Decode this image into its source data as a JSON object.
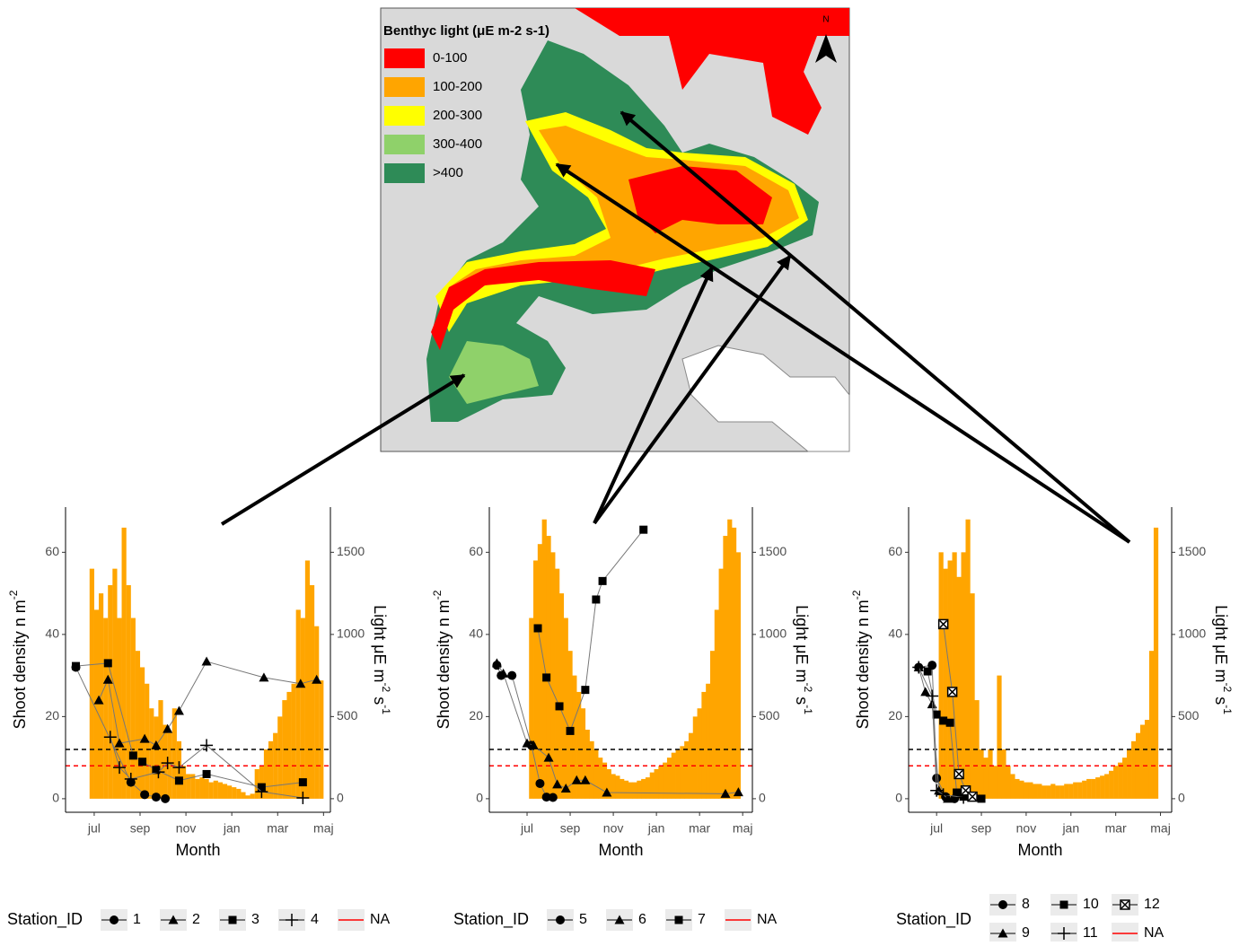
{
  "map": {
    "legend_title": "Benthyc light (μE m-2 s-1)",
    "north": "N",
    "legend": [
      {
        "label": "0-100",
        "color": "#FF0000"
      },
      {
        "label": "100-200",
        "color": "#FFA500"
      },
      {
        "label": "200-300",
        "color": "#FFFF00"
      },
      {
        "label": "300-400",
        "color": "#8FD16A"
      },
      {
        "label": ">400",
        "color": "#2E8B57"
      }
    ]
  },
  "chart_data": [
    {
      "type": "line",
      "xlabel": "Month",
      "ylabel": [
        {
          "text": "Shoot density n m"
        },
        {
          "text": "-2",
          "sup": true
        }
      ],
      "y2label": [
        {
          "text": "Light μE m"
        },
        {
          "text": "-2",
          "sup": true
        },
        {
          "text": " s"
        },
        {
          "text": "-1",
          "sup": true
        }
      ],
      "xlim": [
        5.75,
        17.3
      ],
      "ylim": [
        -3.3,
        71
      ],
      "y2lim": [
        -82.5,
        1775
      ],
      "xticks": [
        {
          "value": 7,
          "label": "jul"
        },
        {
          "value": 9,
          "label": "sep"
        },
        {
          "value": 11,
          "label": "nov"
        },
        {
          "value": 13,
          "label": "jan"
        },
        {
          "value": 15,
          "label": "mar"
        },
        {
          "value": 17,
          "label": "maj"
        }
      ],
      "yticks": [
        0,
        20,
        40,
        60
      ],
      "y2ticks": [
        0,
        500,
        1000,
        1500
      ],
      "legend_title": "Station_ID",
      "light": {
        "axis": "y2",
        "color": "#FFA500",
        "x": [
          6.9,
          7.1,
          7.3,
          7.5,
          7.7,
          7.9,
          8.1,
          8.3,
          8.5,
          8.7,
          8.9,
          9.1,
          9.3,
          9.5,
          9.7,
          9.9,
          10.1,
          10.3,
          10.5,
          10.7,
          10.9,
          11.1,
          11.3,
          11.5,
          11.7,
          11.9,
          12.1,
          12.3,
          12.5,
          12.7,
          12.9,
          13.1,
          13.3,
          13.5,
          13.7,
          13.9,
          14.1,
          14.3,
          14.5,
          14.7,
          14.9,
          15.1,
          15.3,
          15.5,
          15.7,
          15.9,
          16.1,
          16.3,
          16.5,
          16.7,
          16.9
        ],
        "values": [
          1400,
          1150,
          1250,
          1100,
          1300,
          1400,
          1100,
          1650,
          1300,
          1100,
          900,
          800,
          700,
          550,
          500,
          600,
          450,
          400,
          550,
          350,
          200,
          150,
          150,
          120,
          130,
          120,
          100,
          110,
          100,
          90,
          80,
          70,
          60,
          40,
          20,
          30,
          180,
          200,
          300,
          350,
          400,
          500,
          600,
          650,
          700,
          1150,
          1100,
          1450,
          1300,
          1050,
          720
        ]
      },
      "reference_lines": [
        {
          "value": 12,
          "color": "#000000"
        },
        {
          "value": 8,
          "color": "#FF0000",
          "name": "NA"
        }
      ],
      "series": [
        {
          "name": "1",
          "marker": "circle",
          "color": "#000000",
          "x": [
            6.2,
            8.6,
            9.2,
            9.7,
            10.1
          ],
          "values": [
            32,
            4,
            1,
            0.4,
            0
          ]
        },
        {
          "name": "2",
          "marker": "triangle",
          "color": "#000000",
          "x": [
            7.2,
            7.6,
            8.1,
            9.2,
            9.7,
            10.2,
            10.7,
            11.9,
            14.4,
            16.0,
            16.7
          ],
          "values": [
            24,
            29,
            13.5,
            14.6,
            13,
            17,
            21.4,
            33.4,
            29.5,
            28,
            29
          ]
        },
        {
          "name": "3",
          "marker": "square",
          "color": "#000000",
          "x": [
            6.2,
            7.6,
            8.7,
            9.1,
            9.7,
            10.7,
            11.9,
            14.3,
            16.1
          ],
          "values": [
            32.3,
            33,
            10.5,
            9,
            7,
            4.4,
            6,
            2.8,
            4
          ]
        },
        {
          "name": "4",
          "marker": "plus",
          "color": "#000000",
          "x": [
            7.7,
            8.1,
            8.6,
            9.8,
            10.2,
            10.7,
            11.9,
            14.3,
            16.1
          ],
          "values": [
            15,
            7.6,
            4.8,
            6.5,
            8.7,
            7.6,
            13,
            1.7,
            0.2
          ]
        }
      ]
    },
    {
      "type": "line",
      "xlabel": "Month",
      "ylabel": [
        {
          "text": "Shoot density n m"
        },
        {
          "text": "-2",
          "sup": true
        }
      ],
      "y2label": [
        {
          "text": "Light μE m"
        },
        {
          "text": "-2",
          "sup": true
        },
        {
          "text": " s"
        },
        {
          "text": "-1",
          "sup": true
        }
      ],
      "xlim": [
        5.25,
        17.45
      ],
      "ylim": [
        -3.3,
        71
      ],
      "y2lim": [
        -82.5,
        1775
      ],
      "xticks": [
        {
          "value": 7,
          "label": "jul"
        },
        {
          "value": 9,
          "label": "sep"
        },
        {
          "value": 11,
          "label": "nov"
        },
        {
          "value": 13,
          "label": "jan"
        },
        {
          "value": 15,
          "label": "mar"
        },
        {
          "value": 17,
          "label": "maj"
        }
      ],
      "yticks": [
        0,
        20,
        40,
        60
      ],
      "y2ticks": [
        0,
        500,
        1000,
        1500
      ],
      "legend_title": "Station_ID",
      "light": {
        "axis": "y2",
        "color": "#FFA500",
        "x": [
          7.2,
          7.4,
          7.6,
          7.8,
          8.0,
          8.2,
          8.4,
          8.6,
          8.8,
          9.0,
          9.2,
          9.4,
          9.6,
          9.8,
          10.0,
          10.2,
          10.4,
          10.6,
          10.8,
          11.0,
          11.2,
          11.4,
          11.6,
          11.8,
          12.0,
          12.2,
          12.4,
          12.6,
          12.8,
          13.0,
          13.2,
          13.4,
          13.6,
          13.8,
          14.0,
          14.2,
          14.4,
          14.6,
          14.8,
          15.0,
          15.2,
          15.4,
          15.6,
          15.8,
          16.0,
          16.2,
          16.4,
          16.6,
          16.8
        ],
        "values": [
          1100,
          1450,
          1550,
          1700,
          1600,
          1500,
          1400,
          1250,
          1100,
          900,
          750,
          650,
          550,
          420,
          350,
          300,
          250,
          220,
          180,
          150,
          140,
          120,
          110,
          100,
          100,
          110,
          120,
          130,
          160,
          180,
          200,
          220,
          250,
          280,
          300,
          320,
          350,
          400,
          500,
          550,
          650,
          700,
          900,
          1150,
          1400,
          1600,
          1700,
          1650,
          1500
        ]
      },
      "reference_lines": [
        {
          "value": 12,
          "color": "#000000"
        },
        {
          "value": 8,
          "color": "#FF0000",
          "name": "NA"
        }
      ],
      "series": [
        {
          "name": "5",
          "marker": "circle",
          "color": "#000000",
          "x": [
            5.6,
            5.8,
            6.3,
            7.2,
            7.6,
            7.9,
            8.2
          ],
          "values": [
            32.5,
            30,
            30,
            13,
            3.7,
            0.4,
            0.3
          ]
        },
        {
          "name": "6",
          "marker": "triangle",
          "color": "#000000",
          "x": [
            5.6,
            5.9,
            7.0,
            7.3,
            8.0,
            8.4,
            8.8,
            9.3,
            9.7,
            10.7,
            16.2,
            16.8
          ],
          "values": [
            33,
            30.5,
            13.5,
            13,
            10,
            3.5,
            2.5,
            4.5,
            4.5,
            1.5,
            1.2,
            1.6
          ]
        },
        {
          "name": "7",
          "marker": "square",
          "color": "#000000",
          "x": [
            7.5,
            7.9,
            8.5,
            9.0,
            9.7,
            10.2,
            10.5,
            12.4
          ],
          "values": [
            41.5,
            29.5,
            22.5,
            16.5,
            26.5,
            48.5,
            53,
            65.5
          ]
        }
      ]
    },
    {
      "type": "line",
      "xlabel": "Month",
      "ylabel": [
        {
          "text": "Shoot density n m"
        },
        {
          "text": "-2",
          "sup": true
        }
      ],
      "y2label": [
        {
          "text": "Light μE m"
        },
        {
          "text": "-2",
          "sup": true
        },
        {
          "text": " s"
        },
        {
          "text": "-1",
          "sup": true
        }
      ],
      "xlim": [
        5.75,
        17.5
      ],
      "ylim": [
        -3.3,
        71
      ],
      "y2lim": [
        -82.5,
        1775
      ],
      "xticks": [
        {
          "value": 7,
          "label": "jul"
        },
        {
          "value": 9,
          "label": "sep"
        },
        {
          "value": 11,
          "label": "nov"
        },
        {
          "value": 13,
          "label": "jan"
        },
        {
          "value": 15,
          "label": "mar"
        },
        {
          "value": 17,
          "label": "maj"
        }
      ],
      "yticks": [
        0,
        20,
        40,
        60
      ],
      "y2ticks": [
        0,
        500,
        1000,
        1500
      ],
      "legend_title": "Station_ID",
      "light": {
        "axis": "y2",
        "color": "#FFA500",
        "x": [
          7.2,
          7.4,
          7.6,
          7.8,
          8.0,
          8.2,
          8.4,
          8.6,
          8.8,
          9.0,
          9.2,
          9.4,
          9.6,
          9.8,
          10.0,
          10.2,
          10.4,
          10.6,
          10.8,
          11.0,
          11.2,
          11.4,
          11.6,
          11.8,
          12.0,
          12.2,
          12.4,
          12.6,
          12.8,
          13.0,
          13.2,
          13.4,
          13.6,
          13.8,
          14.0,
          14.2,
          14.4,
          14.6,
          14.8,
          15.0,
          15.2,
          15.4,
          15.6,
          15.8,
          16.0,
          16.2,
          16.4,
          16.6,
          16.8
        ],
        "values": [
          1500,
          1400,
          1450,
          1500,
          1350,
          1500,
          1700,
          1250,
          600,
          300,
          250,
          300,
          200,
          750,
          300,
          200,
          150,
          120,
          110,
          100,
          100,
          90,
          90,
          80,
          80,
          90,
          80,
          80,
          90,
          90,
          100,
          100,
          110,
          120,
          120,
          130,
          140,
          150,
          170,
          200,
          220,
          250,
          300,
          350,
          400,
          450,
          480,
          900,
          1650
        ]
      },
      "reference_lines": [
        {
          "value": 12,
          "color": "#000000"
        },
        {
          "value": 8,
          "color": "#FF0000",
          "name": "NA"
        }
      ],
      "series": [
        {
          "name": "8",
          "marker": "circle",
          "color": "#000000",
          "x": [
            6.2,
            6.8,
            7.0,
            7.4,
            7.8
          ],
          "values": [
            32,
            32.5,
            5,
            0.5,
            0
          ]
        },
        {
          "name": "9",
          "marker": "triangle",
          "color": "#000000",
          "x": [
            6.2,
            6.5,
            6.8,
            7.1,
            7.5
          ],
          "values": [
            32,
            26,
            23,
            2,
            0
          ]
        },
        {
          "name": "10",
          "marker": "square",
          "color": "#000000",
          "x": [
            6.6,
            7.0,
            7.3,
            7.6,
            7.9,
            8.2,
            9.0
          ],
          "values": [
            31,
            20.5,
            19,
            18.5,
            1.5,
            0.5,
            0
          ]
        },
        {
          "name": "11",
          "marker": "plus",
          "color": "#000000",
          "x": [
            6.2,
            6.8,
            7.0,
            7.3,
            8.2
          ],
          "values": [
            32,
            25,
            2,
            1,
            0.3
          ]
        },
        {
          "name": "12",
          "marker": "boxed-x",
          "color": "#000000",
          "x": [
            7.3,
            7.7,
            8.0,
            8.3,
            8.6
          ],
          "values": [
            42.5,
            26,
            6,
            2,
            0.5
          ]
        }
      ]
    }
  ]
}
